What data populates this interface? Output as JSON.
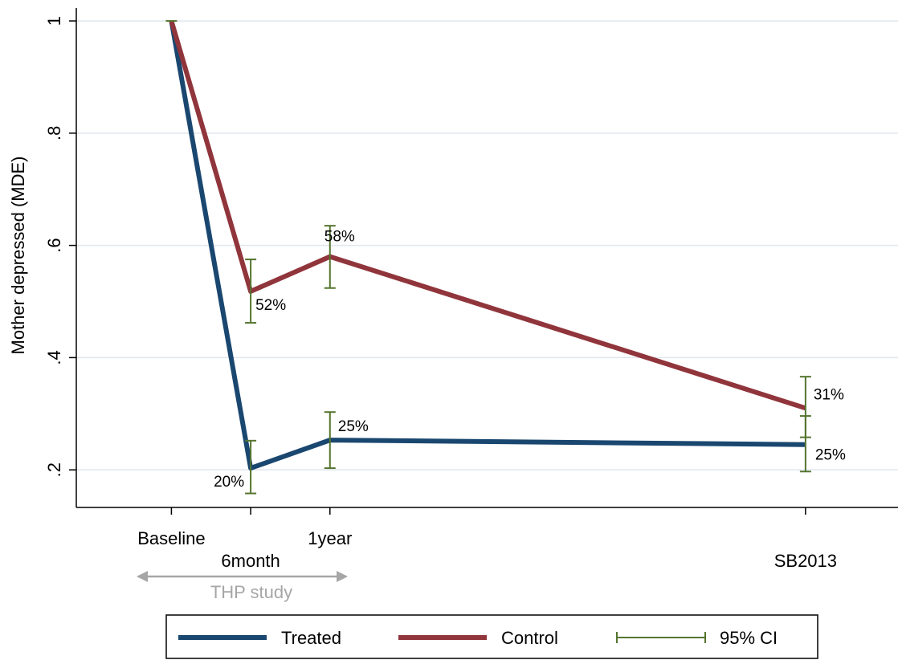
{
  "chart_data": {
    "type": "line",
    "y_label": "Mother depressed (MDE)",
    "x": [
      0,
      6,
      12,
      48
    ],
    "xlim": [
      -7.2,
      55
    ],
    "xticks": [
      {
        "value": 0,
        "label": "Baseline"
      },
      {
        "value": 6,
        "label": "6month"
      },
      {
        "value": 12,
        "label": "1year"
      },
      {
        "value": 48,
        "label": "SB2013"
      }
    ],
    "ylim": [
      0.133,
      1.023
    ],
    "yticks": [
      {
        "value": 0.2,
        "label": ".2"
      },
      {
        "value": 0.4,
        "label": ".4"
      },
      {
        "value": 0.6,
        "label": ".6"
      },
      {
        "value": 0.8,
        "label": ".8"
      },
      1
    ],
    "grid": true,
    "series": [
      {
        "name": "Treated",
        "color": "#1a476f",
        "values": [
          1,
          0.203,
          0.253,
          0.245
        ],
        "value_labels": [
          null,
          "20%",
          "25%",
          "25%"
        ],
        "ci_low": [
          null,
          0.158,
          0.203,
          0.197
        ],
        "ci_high": [
          null,
          0.252,
          0.303,
          0.296
        ]
      },
      {
        "name": "Control",
        "color": "#90353b",
        "values": [
          1,
          0.518,
          0.58,
          0.31
        ],
        "value_labels": [
          null,
          "52%",
          "58%",
          "31%"
        ],
        "ci_low": [
          null,
          0.462,
          0.524,
          0.258
        ],
        "ci_high": [
          null,
          0.575,
          0.635,
          0.366
        ]
      }
    ],
    "ci_label": "95% CI",
    "ci_color": "#55752f",
    "annotation": "THP study",
    "annotation_color": "#a6a6a6",
    "legend": "bottom"
  }
}
